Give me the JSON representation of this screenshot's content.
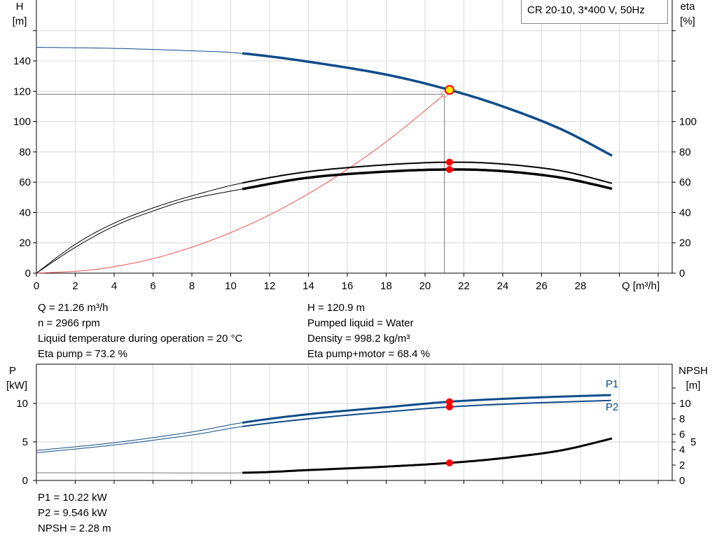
{
  "chart_data": [
    {
      "type": "line",
      "legend": "CR 20-10, 3*400 V, 50Hz",
      "x_axis": {
        "label": "Q [m³/h]",
        "range": [
          0,
          32
        ],
        "ticks": [
          0,
          2,
          4,
          6,
          8,
          10,
          12,
          14,
          16,
          18,
          20,
          22,
          24,
          26,
          28
        ]
      },
      "y_axis_left": {
        "label": "H",
        "unit": "[m]",
        "range": [
          0,
          160
        ],
        "ticks": [
          0,
          20,
          40,
          60,
          80,
          100,
          120,
          140
        ]
      },
      "y_axis_right": {
        "label": "eta",
        "unit": "[%]",
        "range": [
          0,
          160
        ],
        "ticks": [
          0,
          20,
          40,
          60,
          80,
          100
        ]
      },
      "grid": true,
      "series": [
        {
          "id": "H",
          "color": "#0f4c8a",
          "x": [
            0,
            4,
            8,
            10.6,
            14,
            18,
            21.26,
            24,
            27,
            29.7
          ],
          "y": [
            149,
            148.3,
            146.7,
            145,
            139.5,
            131,
            120.9,
            110,
            95,
            77
          ]
        },
        {
          "id": "eta_pump",
          "color": "#000000",
          "x": [
            0,
            2,
            4,
            6,
            8,
            10.6,
            14,
            18,
            21.26,
            24,
            27,
            29.7
          ],
          "y": [
            0,
            19,
            33,
            43,
            51,
            59.5,
            67,
            71.5,
            73.2,
            72,
            67.5,
            59
          ]
        },
        {
          "id": "eta_total",
          "color": "#000000",
          "x": [
            0,
            2,
            4,
            6,
            8,
            10.6,
            14,
            18,
            21.26,
            24,
            27,
            29.7
          ],
          "y": [
            0,
            17,
            31,
            41,
            49,
            55.5,
            63,
            67,
            68.4,
            67.3,
            63,
            55.5
          ]
        },
        {
          "id": "system_curve",
          "color": "#f05050",
          "x": [
            0,
            3,
            6,
            9,
            12,
            15,
            18,
            21
          ],
          "y": [
            0,
            2.4,
            9.6,
            21.7,
            38.5,
            60.2,
            86.7,
            118
          ]
        }
      ],
      "duty_point": {
        "Q": 21.26,
        "H": 120.9,
        "eta_pump": 73.2,
        "eta_total": 68.4
      },
      "requested_point": {
        "Q": 21,
        "H": 118
      }
    },
    {
      "type": "line",
      "x_axis": {
        "range": [
          0,
          32
        ]
      },
      "y_axis_left": {
        "label": "P",
        "unit": "[kW]",
        "range": [
          0,
          15
        ],
        "ticks": [
          0,
          5,
          10
        ]
      },
      "y_axis_right": {
        "label": "NPSH",
        "unit": "[m]",
        "ticks": [
          0,
          2,
          4,
          5,
          6,
          8,
          10
        ]
      },
      "grid": true,
      "series": [
        {
          "name": "P1",
          "color": "#0f4c8a",
          "x": [
            0,
            4,
            8,
            10.6,
            14,
            18,
            21.26,
            25,
            29.7
          ],
          "y": [
            3.9,
            4.9,
            6.3,
            7.5,
            8.6,
            9.5,
            10.22,
            10.7,
            11.1
          ]
        },
        {
          "name": "P2",
          "color": "#0f4c8a",
          "x": [
            0,
            4,
            8,
            10.6,
            14,
            18,
            21.26,
            25,
            29.7
          ],
          "y": [
            3.6,
            4.6,
            5.9,
            7.0,
            8.0,
            8.9,
            9.546,
            10.0,
            10.4
          ]
        },
        {
          "id": "NPSH",
          "color": "#000000",
          "x": [
            0,
            5,
            10.6,
            14,
            18,
            21.26,
            24,
            27,
            29.7
          ],
          "y": [
            1.0,
            1.0,
            1.0,
            1.35,
            1.8,
            2.28,
            2.9,
            3.9,
            5.5
          ]
        }
      ],
      "duty_point": {
        "Q": 21.26,
        "P1": 10.22,
        "P2": 9.546,
        "NPSH": 2.28
      }
    }
  ],
  "info": {
    "left": [
      "Q = 21.26 m³/h",
      "n = 2966 rpm",
      "Liquid temperature during operation = 20 °C",
      "Eta pump = 73.2 %"
    ],
    "right": [
      "H = 120.9 m",
      "Pumped liquid = Water",
      "Density = 998.2 kg/m³",
      "Eta pump+motor = 68.4 %"
    ],
    "bottom": [
      "P1 = 10.22 kW",
      "P2 = 9.546 kW",
      "NPSH = 2.28 m"
    ]
  },
  "colors": {
    "head": "#0f4c8a",
    "duty_point_fill": "#ffee00",
    "duty_point_marker": "#ff0000",
    "system_curve": "#f05050"
  }
}
